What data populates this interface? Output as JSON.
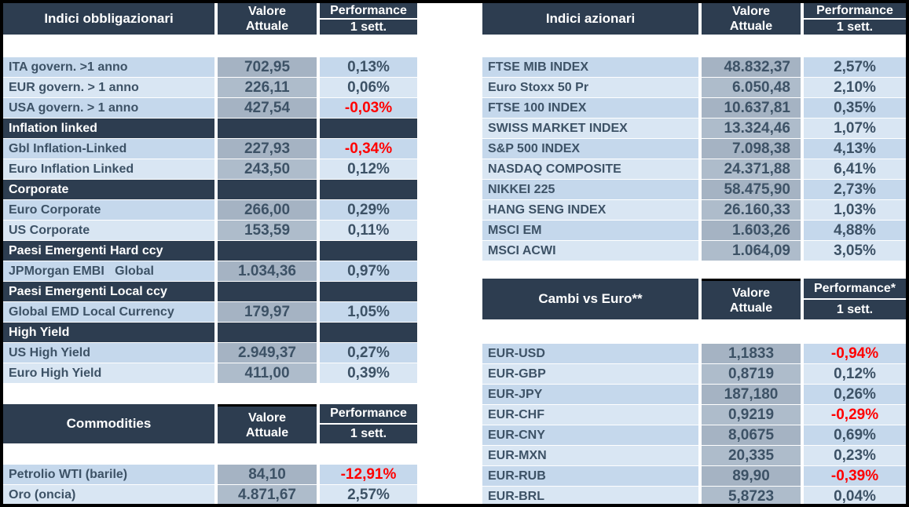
{
  "colors": {
    "header_bg": "#2d3d50",
    "row_dark": "#c5d8ec",
    "row_light": "#d9e6f3",
    "value_col_dark": "#a5b3c3",
    "value_col_light": "#aebccb",
    "text": "#3d5266",
    "negative": "#ff0000",
    "frame": "#000000"
  },
  "tables": {
    "bonds": {
      "title": "Indici obbligazionari",
      "value_header_1": "Valore",
      "value_header_2": "Attuale",
      "perf_header": "Performance",
      "perf_sub": "1 sett.",
      "rows": [
        {
          "type": "data",
          "label": "ITA govern. >1 anno",
          "value": "702,95",
          "perf": "0,13%"
        },
        {
          "type": "data",
          "label": "EUR govern. > 1 anno",
          "value": "226,11",
          "perf": "0,06%"
        },
        {
          "type": "data",
          "label": "USA govern. > 1 anno",
          "value": "427,54",
          "perf": "-0,03%"
        },
        {
          "type": "section",
          "label": "Inflation linked"
        },
        {
          "type": "data",
          "label": "Gbl Inflation-Linked",
          "value": "227,93",
          "perf": "-0,34%"
        },
        {
          "type": "data",
          "label": "Euro Inflation Linked",
          "value": "243,50",
          "perf": "0,12%"
        },
        {
          "type": "section",
          "label": "Corporate"
        },
        {
          "type": "data",
          "label": "Euro Corporate",
          "value": "266,00",
          "perf": "0,29%"
        },
        {
          "type": "data",
          "label": "US Corporate",
          "value": "153,59",
          "perf": "0,11%"
        },
        {
          "type": "section",
          "label": "Paesi Emergenti Hard ccy"
        },
        {
          "type": "data",
          "label": "JPMorgan EMBI   Global",
          "value": "1.034,36",
          "perf": "0,97%"
        },
        {
          "type": "section",
          "label": "Paesi Emergenti Local ccy"
        },
        {
          "type": "data",
          "label": "Global EMD Local Currency",
          "value": "179,97",
          "perf": "1,05%"
        },
        {
          "type": "section",
          "label": "High Yield"
        },
        {
          "type": "data",
          "label": "US High Yield",
          "value": "2.949,37",
          "perf": "0,27%"
        },
        {
          "type": "data",
          "label": "Euro High Yield",
          "value": "411,00",
          "perf": "0,39%"
        }
      ]
    },
    "commodities": {
      "title": "Commodities",
      "value_header_1": "Valore",
      "value_header_2": "Attuale",
      "perf_header": "Performance",
      "perf_sub": "1 sett.",
      "rows": [
        {
          "type": "data",
          "label": "Petrolio WTI (barile)",
          "value": "84,10",
          "perf": "-12,91%"
        },
        {
          "type": "data",
          "label": "Oro (oncia)",
          "value": "4.871,67",
          "perf": "2,57%"
        }
      ]
    },
    "equities": {
      "title": "Indici azionari",
      "value_header_1": "Valore",
      "value_header_2": "Attuale",
      "perf_header": "Performance",
      "perf_sub": "1 sett.",
      "rows": [
        {
          "type": "data",
          "label": "FTSE MIB INDEX",
          "value": "48.832,37",
          "perf": "2,57%"
        },
        {
          "type": "data",
          "label": "Euro Stoxx 50 Pr",
          "value": "6.050,48",
          "perf": "2,10%"
        },
        {
          "type": "data",
          "label": "FTSE 100 INDEX",
          "value": "10.637,81",
          "perf": "0,35%"
        },
        {
          "type": "data",
          "label": "SWISS MARKET INDEX",
          "value": "13.324,46",
          "perf": "1,07%"
        },
        {
          "type": "data",
          "label": "S&P 500 INDEX",
          "value": "7.098,38",
          "perf": "4,13%"
        },
        {
          "type": "data",
          "label": "NASDAQ COMPOSITE",
          "value": "24.371,88",
          "perf": "6,41%"
        },
        {
          "type": "data",
          "label": "NIKKEI 225",
          "value": "58.475,90",
          "perf": "2,73%"
        },
        {
          "type": "data",
          "label": "HANG SENG INDEX",
          "value": "26.160,33",
          "perf": "1,03%"
        },
        {
          "type": "data",
          "label": "MSCI EM",
          "value": "1.603,26",
          "perf": "4,88%"
        },
        {
          "type": "data",
          "label": "MSCI ACWI",
          "value": "1.064,09",
          "perf": "3,05%"
        }
      ]
    },
    "fx": {
      "title": "Cambi vs Euro**",
      "value_header_1": "Valore",
      "value_header_2": "Attuale",
      "perf_header": "Performance*",
      "perf_sub": "1 sett.",
      "rows": [
        {
          "type": "data",
          "label": "EUR-USD",
          "value": "1,1833",
          "perf": "-0,94%"
        },
        {
          "type": "data",
          "label": "EUR-GBP",
          "value": "0,8719",
          "perf": "0,12%"
        },
        {
          "type": "data",
          "label": "EUR-JPY",
          "value": "187,180",
          "perf": "0,26%"
        },
        {
          "type": "data",
          "label": "EUR-CHF",
          "value": "0,9219",
          "perf": "-0,29%"
        },
        {
          "type": "data",
          "label": "EUR-CNY",
          "value": "8,0675",
          "perf": "0,69%"
        },
        {
          "type": "data",
          "label": "EUR-MXN",
          "value": "20,335",
          "perf": "0,23%"
        },
        {
          "type": "data",
          "label": "EUR-RUB",
          "value": "89,90",
          "perf": "-0,39%"
        },
        {
          "type": "data",
          "label": "EUR-BRL",
          "value": "5,8723",
          "perf": "0,04%"
        }
      ]
    }
  }
}
